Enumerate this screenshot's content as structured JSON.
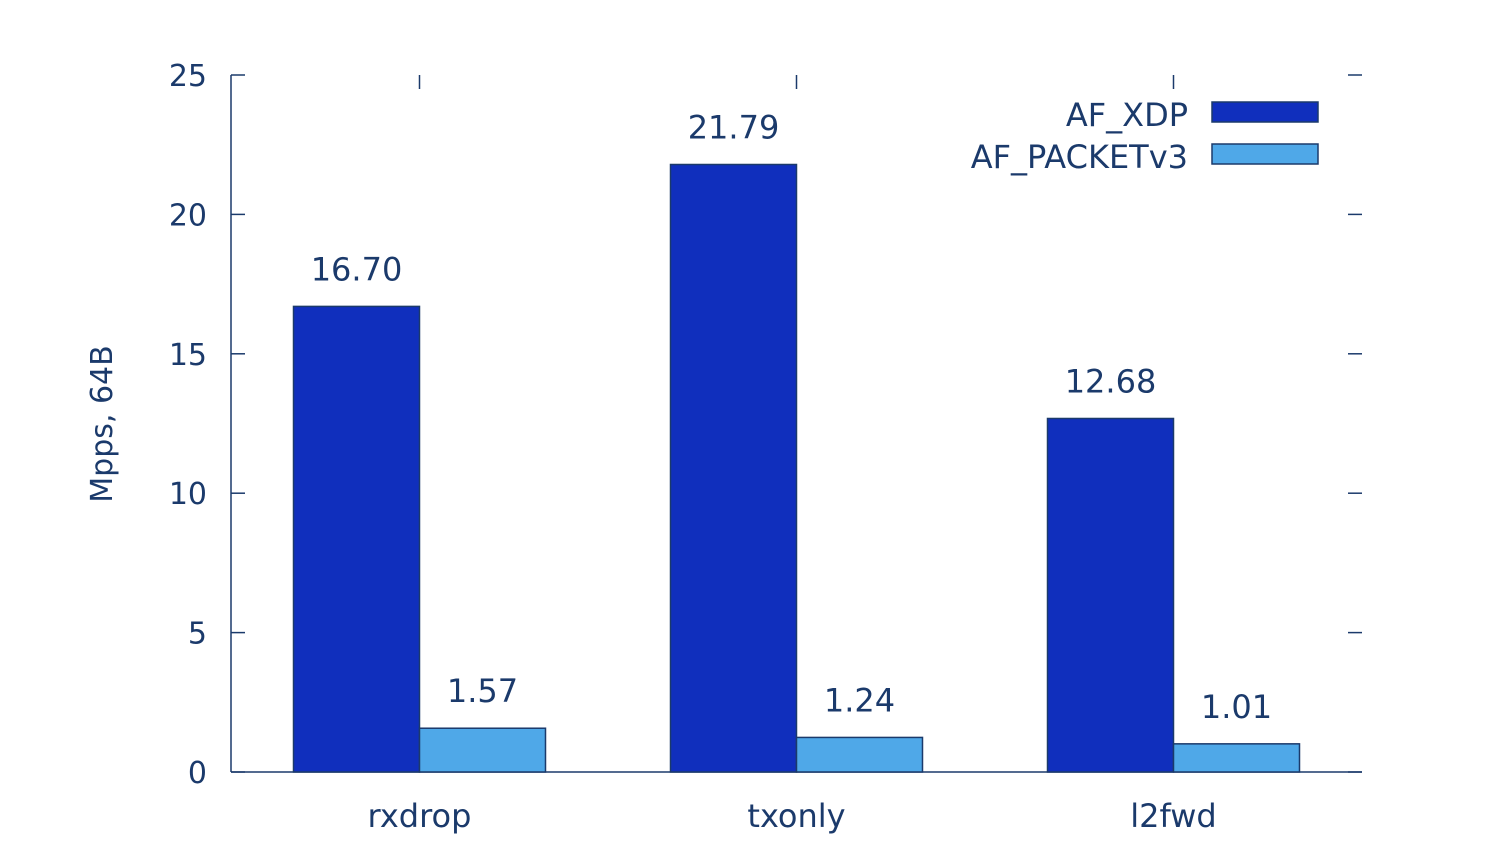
{
  "chart_data": {
    "type": "bar",
    "ylabel": "Mpps, 64B",
    "ylim": [
      0,
      25
    ],
    "yticks": [
      0,
      5,
      10,
      15,
      20,
      25
    ],
    "categories": [
      "rxdrop",
      "txonly",
      "l2fwd"
    ],
    "series": [
      {
        "name": "AF_XDP",
        "values": [
          16.7,
          21.79,
          12.68
        ],
        "labels": [
          "16.70",
          "21.79",
          "12.68"
        ],
        "color": "#102fbd"
      },
      {
        "name": "AF_PACKETv3",
        "values": [
          1.57,
          1.24,
          1.01
        ],
        "labels": [
          "1.57",
          "1.24",
          "1.01"
        ],
        "color": "#4fa8e8"
      }
    ],
    "legend_position": "top-right",
    "grid": false,
    "text_color": "#1b3a6b"
  }
}
